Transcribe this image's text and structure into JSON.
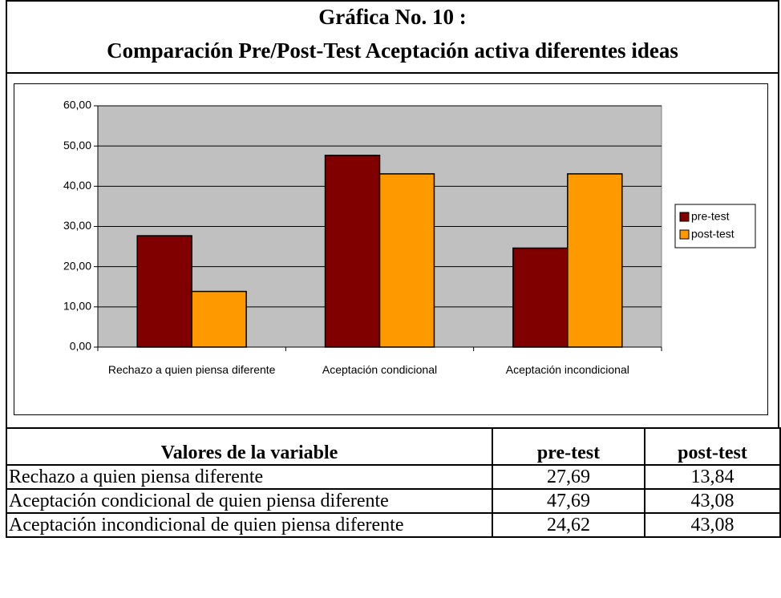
{
  "header": {
    "title": "Gráfica No. 10 :",
    "subtitle": "Comparación Pre/Post-Test Aceptación activa diferentes ideas"
  },
  "chart_data": {
    "type": "bar",
    "categories": [
      "Rechazo a quien piensa diferente",
      "Aceptación condicional",
      "Aceptación incondicional"
    ],
    "series": [
      {
        "name": "pre-test",
        "color": "#800000",
        "values": [
          27.69,
          47.69,
          24.62
        ]
      },
      {
        "name": "post-test",
        "color": "#ff9900",
        "values": [
          13.84,
          43.08,
          43.08
        ]
      }
    ],
    "ylim": [
      0,
      60
    ],
    "yticks": [
      {
        "value": 0,
        "label": "0,00"
      },
      {
        "value": 10,
        "label": "10,00"
      },
      {
        "value": 20,
        "label": "20,00"
      },
      {
        "value": 30,
        "label": "30,00"
      },
      {
        "value": 40,
        "label": "40,00"
      },
      {
        "value": 50,
        "label": "50,00"
      },
      {
        "value": 60,
        "label": "60,00"
      }
    ],
    "grid": true,
    "legend": "right",
    "plot_background": "#c0c0c0"
  },
  "table": {
    "header": [
      "Valores de la variable",
      "pre-test",
      "post-test"
    ],
    "rows": [
      [
        "Rechazo a quien piensa diferente",
        "27,69",
        "13,84"
      ],
      [
        "Aceptación condicional de quien piensa diferente",
        "47,69",
        "43,08"
      ],
      [
        "Aceptación incondicional de quien piensa diferente",
        "24,62",
        "43,08"
      ]
    ]
  }
}
